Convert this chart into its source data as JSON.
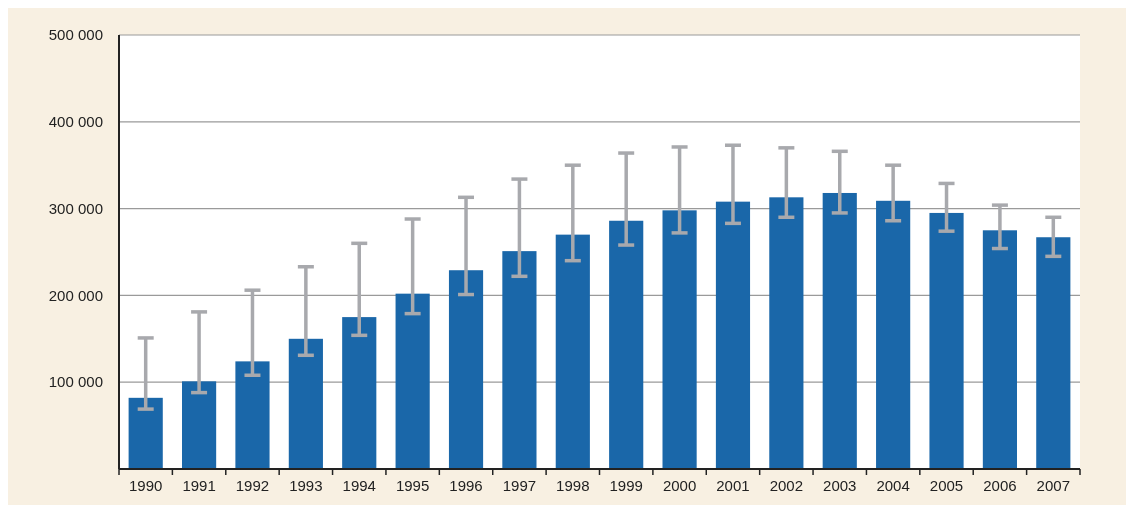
{
  "chart_data": {
    "type": "bar",
    "categories": [
      "1990",
      "1991",
      "1992",
      "1993",
      "1994",
      "1995",
      "1996",
      "1997",
      "1998",
      "1999",
      "2000",
      "2001",
      "2002",
      "2003",
      "2004",
      "2005",
      "2006",
      "2007"
    ],
    "values": [
      82000,
      101000,
      124000,
      150000,
      175000,
      202000,
      229000,
      251000,
      270000,
      286000,
      298000,
      308000,
      313000,
      318000,
      309000,
      295000,
      275000,
      267000
    ],
    "errors": [
      [
        69000,
        151000
      ],
      [
        88000,
        181000
      ],
      [
        108000,
        206000
      ],
      [
        131000,
        233000
      ],
      [
        154000,
        260000
      ],
      [
        179000,
        288000
      ],
      [
        201000,
        313000
      ],
      [
        222000,
        334000
      ],
      [
        240000,
        350000
      ],
      [
        258000,
        364000
      ],
      [
        272000,
        371000
      ],
      [
        283000,
        373000
      ],
      [
        290000,
        370000
      ],
      [
        295000,
        366000
      ],
      [
        286000,
        350000
      ],
      [
        274000,
        329000
      ],
      [
        254000,
        304000
      ],
      [
        245000,
        290000
      ]
    ],
    "color": "#1a67a9",
    "ylim": [
      0,
      500000
    ],
    "yticks": [
      {
        "value": 100000,
        "label": "100 000"
      },
      {
        "value": 200000,
        "label": "200 000"
      },
      {
        "value": 300000,
        "label": "300 000"
      },
      {
        "value": 400000,
        "label": "400 000"
      },
      {
        "value": 500000,
        "label": "500 000"
      }
    ],
    "grid": "y"
  }
}
